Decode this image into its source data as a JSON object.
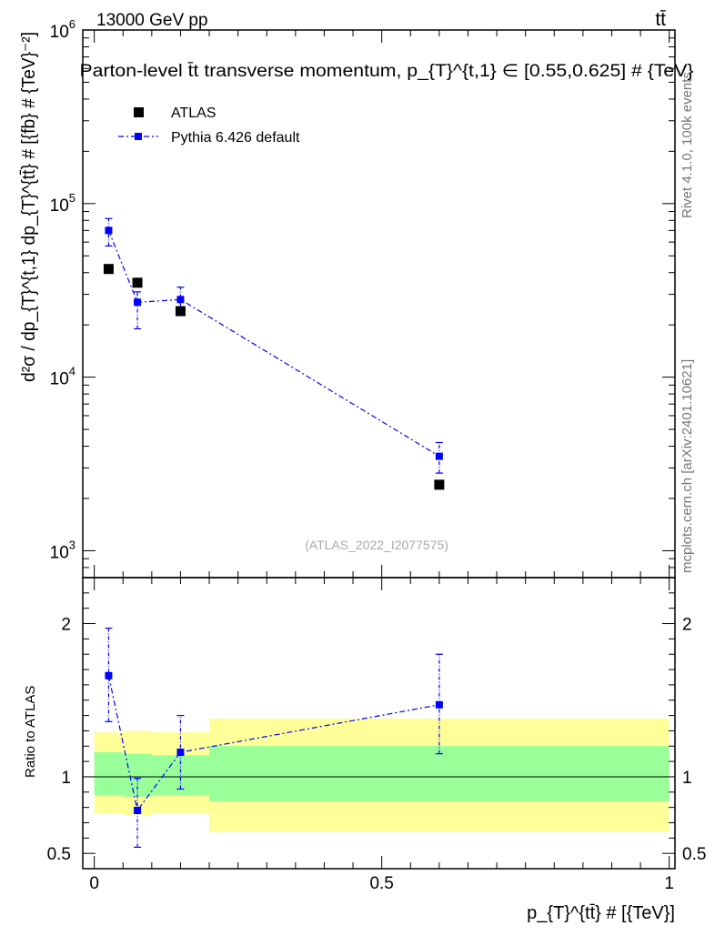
{
  "header": {
    "energy_label": "13000 GeV pp",
    "process_label": "tt̄"
  },
  "side_text": {
    "rivet": "Rivet 4.1.0,  100k events",
    "mcplots": "mcplots.cern.ch [arXiv:2401.10621]"
  },
  "colors": {
    "pythia": "#0000ff",
    "band_inner": "#99ff99",
    "band_outer": "#ffff99",
    "data": "#000000"
  },
  "chart_data": [
    {
      "type": "scatter",
      "panel": "main",
      "title": "Parton-level t̄t transverse momentum, p_{T}^{t,1} ∈ [0.55,0.625] # {TeV}",
      "ylabel": "d²σ / dp_{T}^{t,1} dp_{T}^{tt̄} # [{fb} # {TeV}⁻²]",
      "yscale": "log",
      "ylim": [
        700,
        1000000
      ],
      "xlim": [
        -0.02,
        1.01
      ],
      "y_ticks": [
        {
          "value": 1000,
          "base": "10",
          "exp": "3"
        },
        {
          "value": 10000,
          "base": "10",
          "exp": "4"
        },
        {
          "value": 100000,
          "base": "10",
          "exp": "5"
        },
        {
          "value": 1000000,
          "base": "10",
          "exp": "6"
        }
      ],
      "watermark": "(ATLAS_2022_I2077575)",
      "legend": [
        {
          "name": "ATLAS",
          "marker": "square"
        },
        {
          "name": "Pythia 6.426 default",
          "marker": "square-line"
        }
      ],
      "series": [
        {
          "name": "ATLAS",
          "x": [
            0.025,
            0.075,
            0.15,
            0.6
          ],
          "y": [
            42000,
            35000,
            24000,
            2400
          ]
        },
        {
          "name": "Pythia 6.426 default",
          "x": [
            0.025,
            0.075,
            0.15,
            0.6
          ],
          "y": [
            70000,
            27000,
            28000,
            3500
          ],
          "yerr_low": [
            57000,
            19000,
            23000,
            2800
          ],
          "yerr_high": [
            82000,
            31000,
            33000,
            4200
          ]
        }
      ]
    },
    {
      "type": "line",
      "panel": "ratio",
      "ylabel": "Ratio to ATLAS",
      "ylim": [
        0.4,
        2.3
      ],
      "xlim": [
        -0.02,
        1.01
      ],
      "xlabel": "p_{T}^{tt̄} # [{TeV}]",
      "x_ticks": [
        {
          "value": 0,
          "label": "0"
        },
        {
          "value": 0.5,
          "label": "0.5"
        },
        {
          "value": 1,
          "label": "1"
        }
      ],
      "y_ticks": [
        {
          "value": 0.5,
          "label": "0.5"
        },
        {
          "value": 1,
          "label": "1"
        },
        {
          "value": 2,
          "label": "2"
        }
      ],
      "bands": [
        {
          "x0": 0.0,
          "x1": 0.05,
          "inner": [
            0.88,
            1.16
          ],
          "outer": [
            0.76,
            1.29
          ]
        },
        {
          "x0": 0.05,
          "x1": 0.1,
          "inner": [
            0.87,
            1.15
          ],
          "outer": [
            0.75,
            1.3
          ]
        },
        {
          "x0": 0.1,
          "x1": 0.2,
          "inner": [
            0.88,
            1.14
          ],
          "outer": [
            0.76,
            1.29
          ]
        },
        {
          "x0": 0.2,
          "x1": 1.0,
          "inner": [
            0.84,
            1.2
          ],
          "outer": [
            0.64,
            1.38
          ]
        }
      ],
      "series": [
        {
          "name": "Pythia 6.426 default",
          "x": [
            0.025,
            0.075,
            0.15,
            0.6
          ],
          "y": [
            1.66,
            0.78,
            1.16,
            1.47
          ],
          "yerr_low": [
            1.36,
            0.54,
            0.92,
            1.15
          ],
          "yerr_high": [
            1.97,
            0.99,
            1.4,
            1.8
          ]
        }
      ]
    }
  ]
}
